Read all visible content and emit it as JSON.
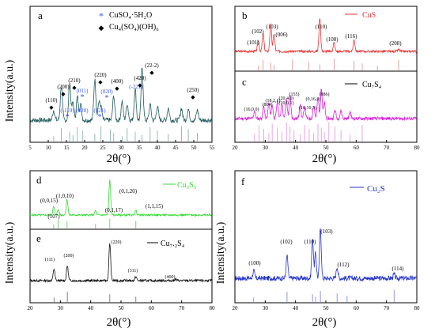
{
  "figure_axis_titles": {
    "y": "Intensity(a.u.)",
    "x": "2θ(°)"
  },
  "chart_data": [
    {
      "panel": "a",
      "type": "line",
      "xlabel": "2θ(°)",
      "ylabel": "Intensity(a.u.)",
      "xlim": [
        5,
        55
      ],
      "xticks": [
        5,
        10,
        15,
        20,
        25,
        30,
        35,
        40,
        45,
        50,
        55
      ],
      "color": "#1f5c5c",
      "legend": [
        {
          "marker": "*",
          "color": "#3355ee",
          "label": "CuSO₄·5H₂O"
        },
        {
          "marker": "◆",
          "color": "#000000",
          "label": "Cu₄(SO₄)(OH)₆"
        }
      ],
      "peaks": [
        {
          "x": 11.5,
          "h": 0.18
        },
        {
          "x": 13.6,
          "h": 0.62
        },
        {
          "x": 15.9,
          "h": 0.68
        },
        {
          "x": 16.8,
          "h": 0.32
        },
        {
          "x": 18.0,
          "h": 0.42
        },
        {
          "x": 18.9,
          "h": 0.3
        },
        {
          "x": 22.8,
          "h": 0.74
        },
        {
          "x": 23.9,
          "h": 0.3
        },
        {
          "x": 24.5,
          "h": 0.22
        },
        {
          "x": 28.0,
          "h": 0.44
        },
        {
          "x": 30.3,
          "h": 0.34
        },
        {
          "x": 31.7,
          "h": 0.3
        },
        {
          "x": 33.9,
          "h": 0.56
        },
        {
          "x": 35.8,
          "h": 0.95
        },
        {
          "x": 38.0,
          "h": 0.28
        },
        {
          "x": 40.0,
          "h": 0.25
        },
        {
          "x": 43.0,
          "h": 0.22
        },
        {
          "x": 46.6,
          "h": 0.22
        },
        {
          "x": 48.5,
          "h": 0.2
        },
        {
          "x": 51.0,
          "h": 0.18
        }
      ],
      "reference_lines": [
        11.5,
        13.6,
        15.9,
        16.8,
        18.0,
        19.5,
        22.8,
        24.5,
        27.1,
        28.0,
        30.3,
        31.7,
        33.9,
        35.8,
        38.0,
        40.0,
        43.0,
        46.6,
        48.5,
        51.0
      ],
      "annotations": [
        {
          "text": "(110)",
          "x": 11.5,
          "color": "#000000",
          "marker": "◆"
        },
        {
          "text": "(200)",
          "x": 13.6,
          "color": "#000000",
          "marker": "◆"
        },
        {
          "text": "(210)",
          "x": 15.9,
          "color": "#000000",
          "marker": "◆"
        },
        {
          "text": "(011)",
          "x": 18.0,
          "color": "#3355ee",
          "marker": "*"
        },
        {
          "text": "(-110)",
          "x": 15.5,
          "color": "#3355ee",
          "marker": "*"
        },
        {
          "text": "(020)",
          "x": 18.9,
          "color": "#3355ee",
          "marker": ""
        },
        {
          "text": "(220)",
          "x": 22.8,
          "color": "#000000",
          "marker": "◆"
        },
        {
          "text": "(021)",
          "x": 23.9,
          "color": "#3355ee",
          "marker": "*"
        },
        {
          "text": "(020)",
          "x": 24.5,
          "color": "#3355ee",
          "marker": "*"
        },
        {
          "text": "(400)",
          "x": 28.0,
          "color": "#000000",
          "marker": "◆"
        },
        {
          "text": "(-221)",
          "x": 31.0,
          "color": "#3355ee",
          "marker": ""
        },
        {
          "text": "(420)",
          "x": 33.9,
          "color": "#000000",
          "marker": "◆"
        },
        {
          "text": "(22-2)",
          "x": 35.8,
          "color": "#000000",
          "marker": "◆"
        },
        {
          "text": "(250)",
          "x": 48.5,
          "color": "#000000",
          "marker": "◆"
        }
      ]
    },
    {
      "panel": "b",
      "type": "line",
      "xlim": [
        20,
        80
      ],
      "xticks": [
        20,
        30,
        40,
        50,
        60,
        70,
        80
      ],
      "color": "#e83333",
      "legend": [
        {
          "label": "CuS",
          "color": "#e83333"
        }
      ],
      "peaks": [
        {
          "x": 27.7,
          "h": 0.28
        },
        {
          "x": 29.3,
          "h": 0.45
        },
        {
          "x": 31.8,
          "h": 0.7
        },
        {
          "x": 32.9,
          "h": 0.45
        },
        {
          "x": 48.0,
          "h": 0.85
        },
        {
          "x": 52.7,
          "h": 0.22
        },
        {
          "x": 59.3,
          "h": 0.3
        },
        {
          "x": 74.0,
          "h": 0.05
        }
      ],
      "reference_lines": [
        27.7,
        29.3,
        31.8,
        32.9,
        39.0,
        44.3,
        48.0,
        52.7,
        59.3,
        62.0,
        67.0,
        74.0
      ],
      "annotations": [
        {
          "text": "(101)",
          "x": 27.7
        },
        {
          "text": "(102)",
          "x": 29.3
        },
        {
          "text": "(103)",
          "x": 31.8
        },
        {
          "text": "(006)",
          "x": 32.9
        },
        {
          "text": "(110)",
          "x": 48.0
        },
        {
          "text": "(108)",
          "x": 52.7
        },
        {
          "text": "(116)",
          "x": 59.3
        },
        {
          "text": "(208)",
          "x": 74.0
        }
      ]
    },
    {
      "panel": "c",
      "type": "line",
      "xlabel": "2θ(°)",
      "xlim": [
        20,
        80
      ],
      "xticks": [
        20,
        30,
        40,
        50,
        60,
        70,
        80
      ],
      "color": "#dd22dd",
      "legend": [
        {
          "label": "Cu₇S₄",
          "color": "#000000"
        }
      ],
      "peaks": [
        {
          "x": 26.5,
          "h": 0.18
        },
        {
          "x": 29.5,
          "h": 0.28
        },
        {
          "x": 31.2,
          "h": 0.36
        },
        {
          "x": 32.3,
          "h": 0.32
        },
        {
          "x": 34.0,
          "h": 0.4
        },
        {
          "x": 35.5,
          "h": 0.36
        },
        {
          "x": 37.0,
          "h": 0.44
        },
        {
          "x": 38.2,
          "h": 0.52
        },
        {
          "x": 41.5,
          "h": 0.32
        },
        {
          "x": 43.0,
          "h": 0.28
        },
        {
          "x": 46.0,
          "h": 0.3
        },
        {
          "x": 47.4,
          "h": 0.5
        },
        {
          "x": 48.5,
          "h": 0.7
        },
        {
          "x": 49.5,
          "h": 0.36
        },
        {
          "x": 53.0,
          "h": 0.2
        },
        {
          "x": 55.0,
          "h": 0.18
        },
        {
          "x": 58.0,
          "h": 0.16
        }
      ],
      "reference_lines": [
        26.5,
        28.0,
        29.5,
        31.2,
        32.3,
        34.0,
        35.5,
        37.0,
        38.2,
        39.5,
        41.5,
        43.0,
        44.5,
        46.0,
        47.4,
        48.5,
        49.5,
        51.0,
        53.0,
        55.0,
        58.0,
        62.0
      ],
      "annotations": [
        {
          "text": "(16,0,0)",
          "x": 27.0
        },
        {
          "text": "(804)",
          "x": 30.0
        },
        {
          "text": "(18,2,1)",
          "x": 32.0
        },
        {
          "text": "(20,0,1)",
          "x": 35.0
        },
        {
          "text": "(155)",
          "x": 38.0
        },
        {
          "text": "(20,4,0)",
          "x": 37.5
        },
        {
          "text": "(10,10,3)",
          "x": 43.0
        },
        {
          "text": "(0,16,0)",
          "x": 46.5
        },
        {
          "text": "(886)",
          "x": 48.8
        }
      ]
    },
    {
      "panel": "d",
      "type": "line",
      "xlim": [
        20,
        80
      ],
      "color": "#33dd33",
      "legend": [
        {
          "label": "Cu₉S₅",
          "color": "#33dd33"
        }
      ],
      "peaks": [
        {
          "x": 27.8,
          "h": 0.22
        },
        {
          "x": 29.3,
          "h": 0.14
        },
        {
          "x": 32.2,
          "h": 0.42
        },
        {
          "x": 41.6,
          "h": 0.12
        },
        {
          "x": 46.3,
          "h": 0.92
        },
        {
          "x": 54.9,
          "h": 0.12
        }
      ],
      "reference_lines": [
        27.8,
        29.3,
        32.2,
        41.6,
        46.3,
        54.9
      ],
      "annotations": [
        {
          "text": "(0,0,15)",
          "x": 27.0
        },
        {
          "text": "(1,0,10)",
          "x": 32.0
        },
        {
          "text": "(107)",
          "x": 29.5
        },
        {
          "text": "(0,1,20)",
          "x": 46.3
        },
        {
          "text": "(0,1,17)",
          "x": 41.6
        },
        {
          "text": "(1,1,15)",
          "x": 55.0
        }
      ]
    },
    {
      "panel": "e",
      "type": "line",
      "xlabel": "2θ(°)",
      "xlim": [
        20,
        80
      ],
      "xticks": [
        20,
        30,
        40,
        50,
        60,
        70,
        80
      ],
      "color": "#111111",
      "legend": [
        {
          "label": "Cu₇.₂S₄",
          "color": "#000000"
        }
      ],
      "peaks": [
        {
          "x": 27.9,
          "h": 0.3
        },
        {
          "x": 32.3,
          "h": 0.38
        },
        {
          "x": 46.3,
          "h": 0.95
        },
        {
          "x": 54.9,
          "h": 0.1
        },
        {
          "x": 68.0,
          "h": 0.04
        }
      ],
      "reference_lines": [
        27.9,
        32.3,
        46.3,
        54.9
      ],
      "annotations": [
        {
          "text": "(111)",
          "x": 27.9
        },
        {
          "text": "(200)",
          "x": 32.3
        },
        {
          "text": "(220)",
          "x": 46.3
        },
        {
          "text": "(311)",
          "x": 55.0
        },
        {
          "text": "(400)",
          "x": 67.5
        }
      ]
    },
    {
      "panel": "f",
      "type": "line",
      "xlabel": "2θ(°)",
      "ylabel": "Intensity(a.u.)",
      "xlim": [
        20,
        80
      ],
      "xticks": [
        20,
        30,
        40,
        50,
        60,
        70,
        80
      ],
      "color": "#2233cc",
      "legend": [
        {
          "label": "Cu₂S",
          "color": "#2233cc"
        }
      ],
      "peaks": [
        {
          "x": 26.2,
          "h": 0.12
        },
        {
          "x": 37.2,
          "h": 0.36
        },
        {
          "x": 45.6,
          "h": 0.65
        },
        {
          "x": 46.6,
          "h": 0.4
        },
        {
          "x": 48.2,
          "h": 0.8
        },
        {
          "x": 53.7,
          "h": 0.18
        },
        {
          "x": 72.5,
          "h": 0.06
        }
      ],
      "reference_lines": [
        26.2,
        37.2,
        45.6,
        46.6,
        48.2,
        53.7,
        57.0,
        72.5
      ],
      "annotations": [
        {
          "text": "(100)",
          "x": 26.2
        },
        {
          "text": "(102)",
          "x": 37.2
        },
        {
          "text": "(110)",
          "x": 45.4
        },
        {
          "text": "(103)",
          "x": 48.2
        },
        {
          "text": "(112)",
          "x": 53.7
        },
        {
          "text": "(114)",
          "x": 72.5
        }
      ]
    }
  ]
}
